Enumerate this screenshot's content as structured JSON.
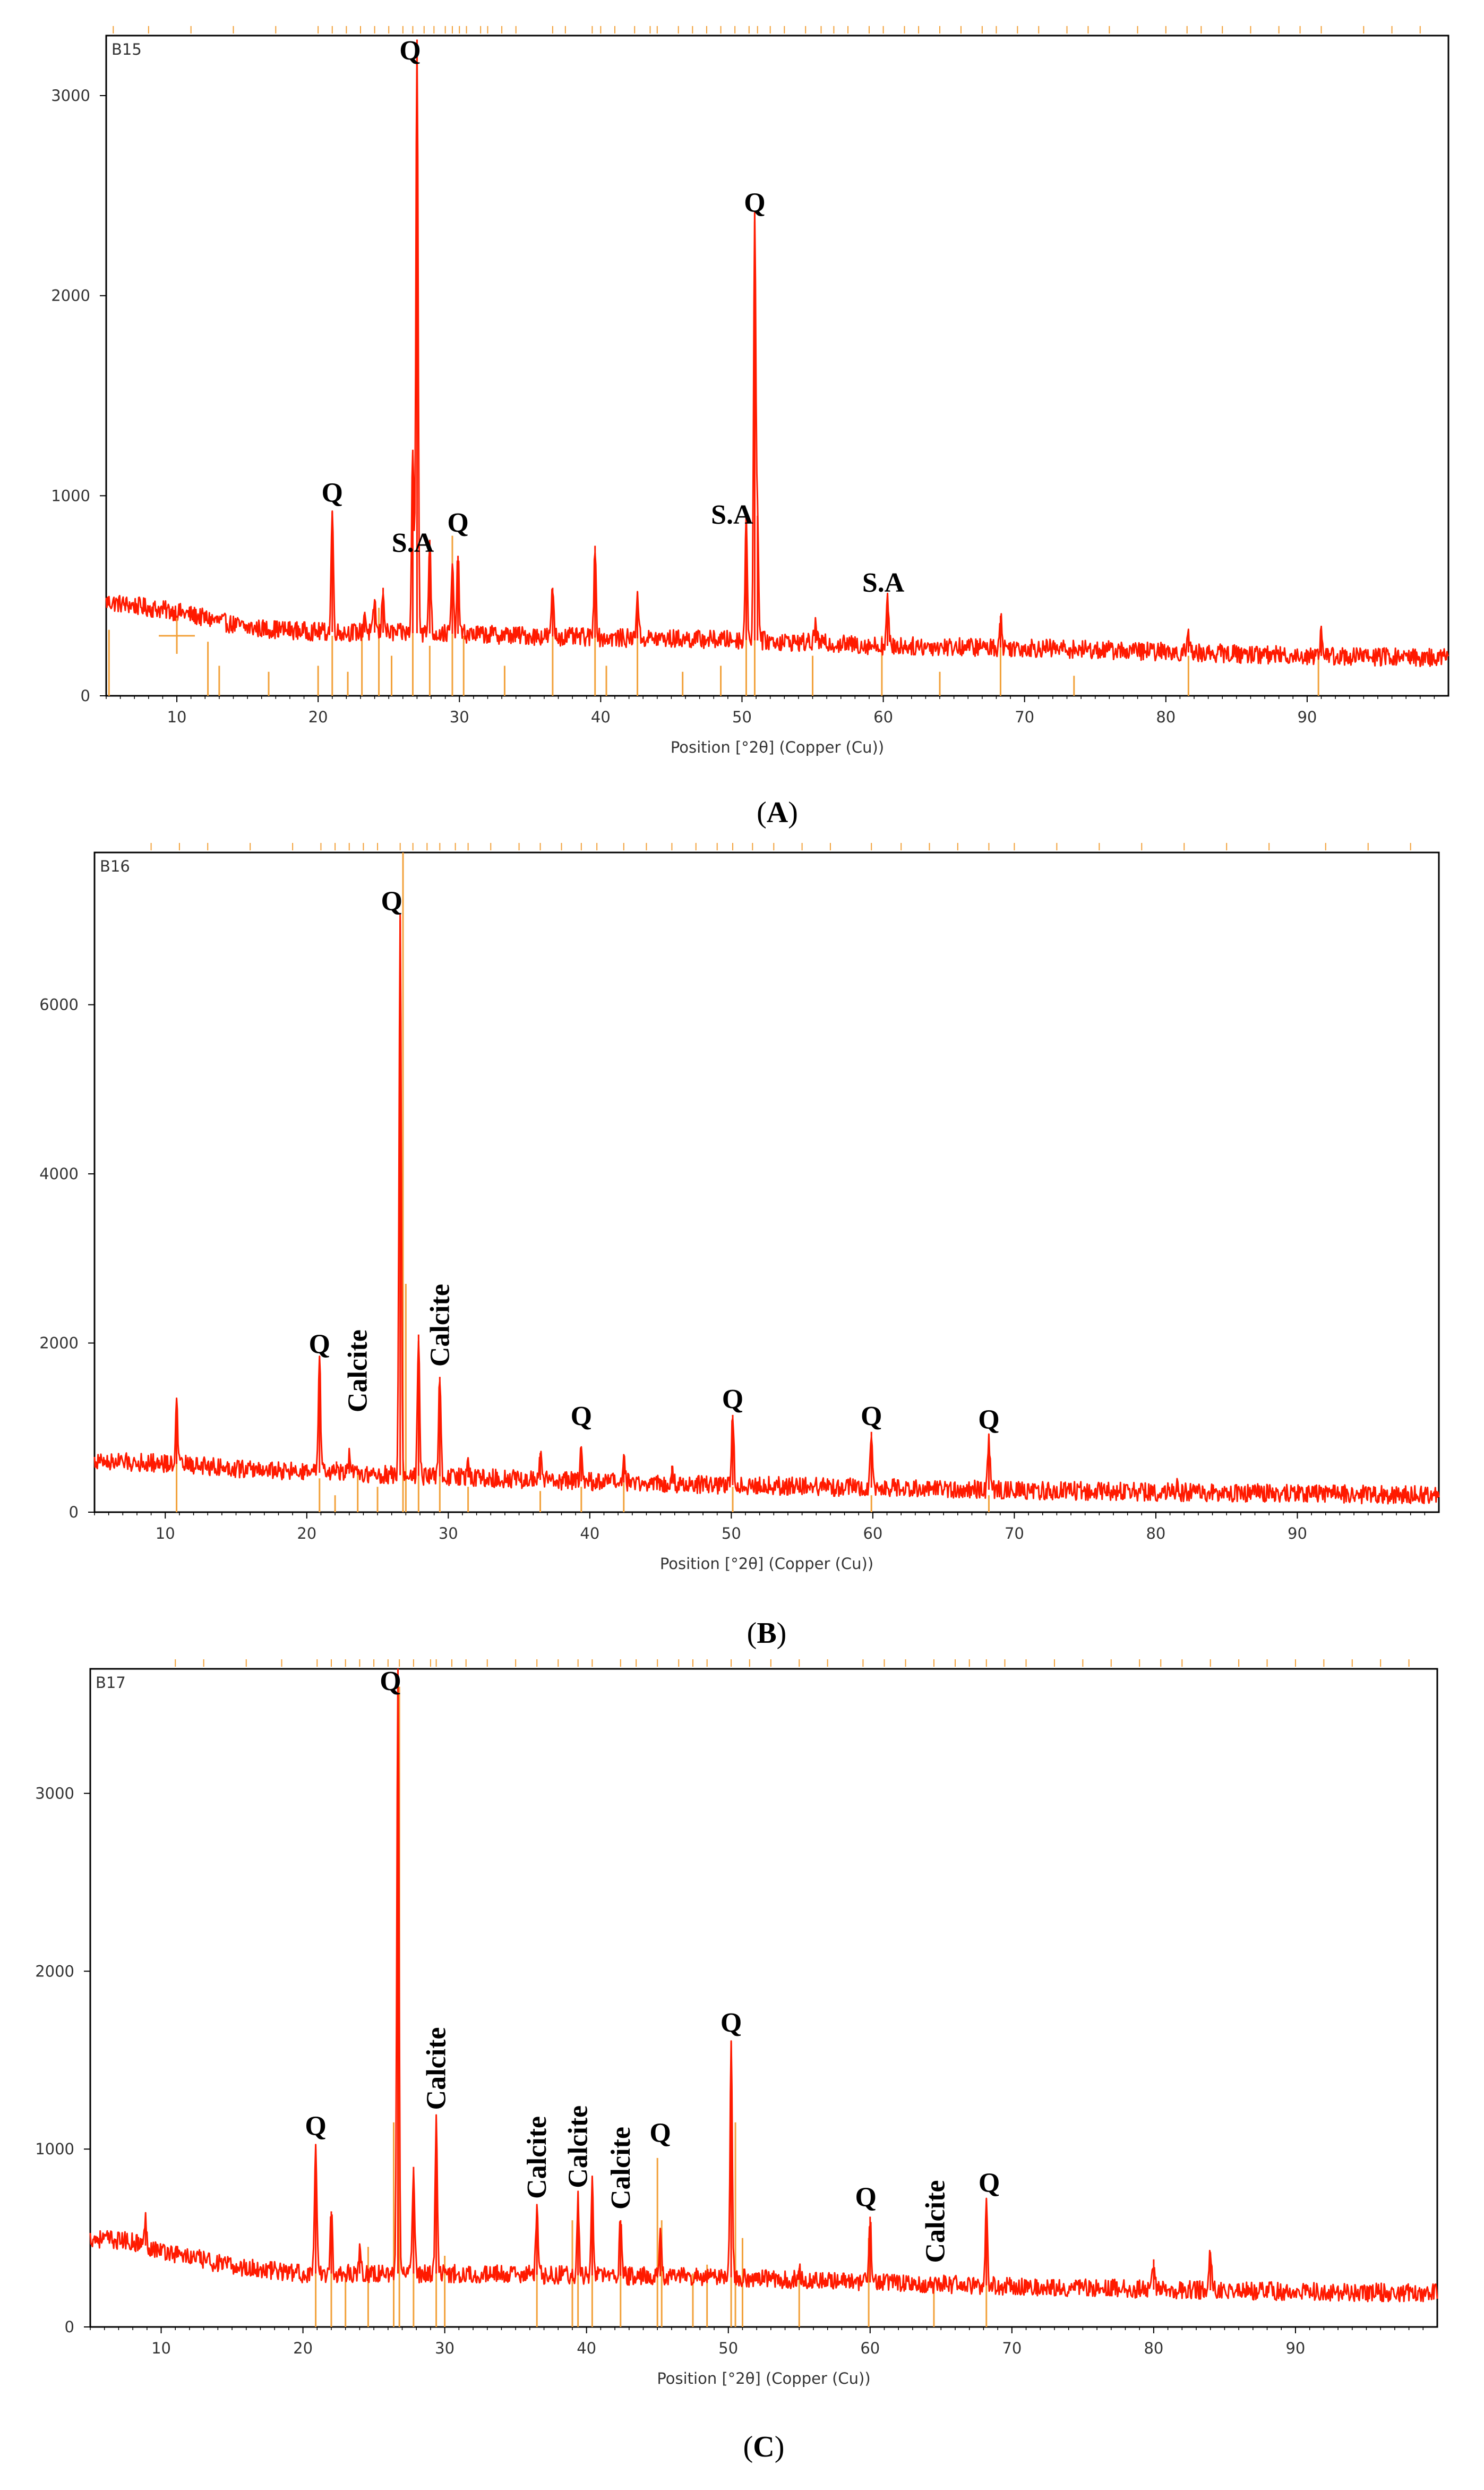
{
  "colors": {
    "pattern": "#ff1a00",
    "reference": "#f2a13a",
    "frame": "#000000",
    "axis_text": "#333333"
  },
  "chart_data": [
    {
      "type": "line",
      "panel": "A",
      "caption_letter": "A",
      "sample": "B15",
      "xlabel": "Position [°2θ] (Copper (Cu))",
      "xlim": [
        5,
        100
      ],
      "xticks": [
        "10",
        "20",
        "30",
        "40",
        "50",
        "60",
        "70",
        "80",
        "90"
      ],
      "ylim": [
        0,
        3300
      ],
      "yticks": [
        "0",
        "1000",
        "2000",
        "3000"
      ],
      "baseline": [
        [
          5,
          470
        ],
        [
          10,
          420
        ],
        [
          15,
          340
        ],
        [
          20,
          320
        ],
        [
          30,
          310
        ],
        [
          40,
          290
        ],
        [
          50,
          280
        ],
        [
          60,
          250
        ],
        [
          70,
          240
        ],
        [
          80,
          220
        ],
        [
          90,
          200
        ],
        [
          100,
          190
        ]
      ],
      "peaks": [
        {
          "x": 21.0,
          "y": 920
        },
        {
          "x": 23.3,
          "y": 420
        },
        {
          "x": 24.0,
          "y": 480
        },
        {
          "x": 24.6,
          "y": 540
        },
        {
          "x": 26.7,
          "y": 1230
        },
        {
          "x": 27.0,
          "y": 3280
        },
        {
          "x": 27.9,
          "y": 780
        },
        {
          "x": 29.5,
          "y": 640
        },
        {
          "x": 29.9,
          "y": 700
        },
        {
          "x": 36.6,
          "y": 540
        },
        {
          "x": 39.6,
          "y": 750
        },
        {
          "x": 42.6,
          "y": 520
        },
        {
          "x": 50.3,
          "y": 870
        },
        {
          "x": 50.9,
          "y": 2370
        },
        {
          "x": 51.1,
          "y": 900
        },
        {
          "x": 55.2,
          "y": 370
        },
        {
          "x": 60.3,
          "y": 480
        },
        {
          "x": 68.3,
          "y": 400
        },
        {
          "x": 81.6,
          "y": 310
        },
        {
          "x": 91.0,
          "y": 350
        }
      ],
      "reference_sticks": [
        {
          "x": 5.2,
          "y": 330
        },
        {
          "x": 12.2,
          "y": 270
        },
        {
          "x": 13.0,
          "y": 150
        },
        {
          "x": 16.5,
          "y": 120
        },
        {
          "x": 20.0,
          "y": 150
        },
        {
          "x": 21.0,
          "y": 300
        },
        {
          "x": 22.1,
          "y": 120
        },
        {
          "x": 23.1,
          "y": 340
        },
        {
          "x": 24.3,
          "y": 440
        },
        {
          "x": 25.2,
          "y": 200
        },
        {
          "x": 26.7,
          "y": 1200
        },
        {
          "x": 27.9,
          "y": 250
        },
        {
          "x": 29.5,
          "y": 800
        },
        {
          "x": 30.3,
          "y": 300
        },
        {
          "x": 33.2,
          "y": 150
        },
        {
          "x": 36.6,
          "y": 300
        },
        {
          "x": 39.6,
          "y": 700
        },
        {
          "x": 40.4,
          "y": 150
        },
        {
          "x": 42.6,
          "y": 400
        },
        {
          "x": 45.8,
          "y": 120
        },
        {
          "x": 48.5,
          "y": 150
        },
        {
          "x": 50.3,
          "y": 860
        },
        {
          "x": 50.9,
          "y": 2370
        },
        {
          "x": 55.0,
          "y": 200
        },
        {
          "x": 59.9,
          "y": 300
        },
        {
          "x": 64.0,
          "y": 120
        },
        {
          "x": 68.3,
          "y": 350
        },
        {
          "x": 73.5,
          "y": 100
        },
        {
          "x": 81.6,
          "y": 200
        },
        {
          "x": 90.8,
          "y": 200
        }
      ],
      "top_markers": [
        5.5,
        8,
        11,
        14,
        17,
        20,
        21,
        22,
        23,
        24,
        25,
        26,
        26.7,
        27.5,
        28.2,
        29,
        29.5,
        30,
        30.5,
        31.5,
        32,
        33,
        34,
        36.6,
        37.5,
        39.4,
        40,
        41,
        42.4,
        43.5,
        44,
        45.5,
        46.5,
        47.5,
        48.5,
        49.5,
        50.5,
        51.1,
        52,
        53,
        54.5,
        55.6,
        56.5,
        57.5,
        59,
        60,
        61.5,
        62.5,
        64,
        65.5,
        67,
        68,
        69.5,
        71,
        73,
        74.5,
        76,
        78,
        80,
        81.5,
        82.5,
        84,
        86,
        88,
        89.5,
        91,
        94,
        96,
        98
      ],
      "cursor": [
        10,
        300
      ],
      "labels": [
        {
          "text": "Q",
          "x": 21.0,
          "y": 970
        },
        {
          "text": "Q",
          "x": 27.0,
          "y": 3180,
          "x_offset": -13
        },
        {
          "text": "S.A",
          "x": 26.7,
          "y": 720
        },
        {
          "text": "Q",
          "x": 29.9,
          "y": 820
        },
        {
          "text": "Q",
          "x": 50.9,
          "y": 2420
        },
        {
          "text": "S.A",
          "x": 49.3,
          "y": 860
        },
        {
          "text": "S.A",
          "x": 60.0,
          "y": 520
        }
      ]
    },
    {
      "type": "line",
      "panel": "B",
      "caption_letter": "B",
      "sample": "B16",
      "xlabel": "Position [°2θ] (Copper (Cu))",
      "xlim": [
        5,
        100
      ],
      "xticks": [
        "10",
        "20",
        "30",
        "40",
        "50",
        "60",
        "70",
        "80",
        "90"
      ],
      "ylim": [
        0,
        7800
      ],
      "yticks": [
        "0",
        "2000",
        "4000",
        "6000"
      ],
      "baseline": [
        [
          5,
          600
        ],
        [
          10,
          580
        ],
        [
          15,
          520
        ],
        [
          20,
          470
        ],
        [
          30,
          420
        ],
        [
          40,
          360
        ],
        [
          50,
          320
        ],
        [
          60,
          290
        ],
        [
          70,
          260
        ],
        [
          80,
          240
        ],
        [
          90,
          220
        ],
        [
          100,
          200
        ]
      ],
      "peaks": [
        {
          "x": 10.8,
          "y": 1250
        },
        {
          "x": 20.9,
          "y": 1800
        },
        {
          "x": 22.1,
          "y": 600
        },
        {
          "x": 23.0,
          "y": 650
        },
        {
          "x": 26.6,
          "y": 7000
        },
        {
          "x": 27.9,
          "y": 2100
        },
        {
          "x": 29.4,
          "y": 1600
        },
        {
          "x": 31.4,
          "y": 650
        },
        {
          "x": 36.5,
          "y": 700
        },
        {
          "x": 39.4,
          "y": 750
        },
        {
          "x": 42.4,
          "y": 600
        },
        {
          "x": 45.8,
          "y": 550
        },
        {
          "x": 50.1,
          "y": 1150
        },
        {
          "x": 59.9,
          "y": 950
        },
        {
          "x": 68.2,
          "y": 900
        },
        {
          "x": 81.5,
          "y": 360
        }
      ],
      "reference_sticks": [
        {
          "x": 10.8,
          "y": 1200
        },
        {
          "x": 20.9,
          "y": 400
        },
        {
          "x": 22.0,
          "y": 200
        },
        {
          "x": 23.6,
          "y": 500
        },
        {
          "x": 25.0,
          "y": 300
        },
        {
          "x": 26.8,
          "y": 7800
        },
        {
          "x": 27.0,
          "y": 2700
        },
        {
          "x": 27.9,
          "y": 1000
        },
        {
          "x": 29.4,
          "y": 900
        },
        {
          "x": 31.4,
          "y": 300
        },
        {
          "x": 36.5,
          "y": 250
        },
        {
          "x": 39.4,
          "y": 300
        },
        {
          "x": 42.4,
          "y": 350
        },
        {
          "x": 50.1,
          "y": 300
        },
        {
          "x": 59.9,
          "y": 200
        },
        {
          "x": 68.2,
          "y": 200
        }
      ],
      "top_markers": [
        9,
        11,
        13,
        16,
        19,
        21,
        22,
        23,
        24,
        25,
        26.6,
        27.5,
        28.5,
        29.4,
        30.5,
        31.4,
        33,
        35,
        36.5,
        38,
        39.4,
        40.5,
        42.4,
        44,
        45.8,
        47.5,
        49,
        50.1,
        51.5,
        53,
        55,
        57,
        59.9,
        62,
        64,
        66,
        68.2,
        70,
        73,
        76,
        79,
        82,
        85,
        88,
        92,
        95,
        98
      ],
      "labels": [
        {
          "text": "Q",
          "x": 20.9,
          "y": 1880
        },
        {
          "text": "Q",
          "x": 26.6,
          "y": 7120,
          "x_offset": -16
        },
        {
          "text": "Calcite",
          "x": 23.6,
          "y": 1180,
          "rotate": true
        },
        {
          "text": "Calcite",
          "x": 29.4,
          "y": 1720,
          "rotate": true
        },
        {
          "text": "Q",
          "x": 39.4,
          "y": 1030
        },
        {
          "text": "Q",
          "x": 50.1,
          "y": 1230
        },
        {
          "text": "Q",
          "x": 59.9,
          "y": 1030
        },
        {
          "text": "Q",
          "x": 68.2,
          "y": 990
        }
      ]
    },
    {
      "type": "line",
      "panel": "C",
      "caption_letter": "C",
      "sample": "B17",
      "xlabel": "Position [°2θ] (Copper (Cu))",
      "xlim": [
        5,
        100
      ],
      "xticks": [
        "10",
        "20",
        "30",
        "40",
        "50",
        "60",
        "70",
        "80",
        "90"
      ],
      "ylim": [
        0,
        3700
      ],
      "yticks": [
        "0",
        "1000",
        "2000",
        "3000"
      ],
      "baseline": [
        [
          5,
          500
        ],
        [
          8,
          480
        ],
        [
          10,
          430
        ],
        [
          15,
          340
        ],
        [
          20,
          300
        ],
        [
          30,
          300
        ],
        [
          40,
          290
        ],
        [
          50,
          280
        ],
        [
          60,
          250
        ],
        [
          70,
          230
        ],
        [
          80,
          210
        ],
        [
          90,
          200
        ],
        [
          100,
          190
        ]
      ],
      "peaks": [
        {
          "x": 8.9,
          "y": 600
        },
        {
          "x": 20.9,
          "y": 1000
        },
        {
          "x": 22.0,
          "y": 650
        },
        {
          "x": 24.0,
          "y": 450
        },
        {
          "x": 26.7,
          "y": 3650
        },
        {
          "x": 27.8,
          "y": 900
        },
        {
          "x": 29.4,
          "y": 1150
        },
        {
          "x": 36.5,
          "y": 650
        },
        {
          "x": 39.4,
          "y": 720
        },
        {
          "x": 40.4,
          "y": 800
        },
        {
          "x": 42.4,
          "y": 600
        },
        {
          "x": 45.2,
          "y": 550
        },
        {
          "x": 50.2,
          "y": 1600
        },
        {
          "x": 55.0,
          "y": 330
        },
        {
          "x": 60.0,
          "y": 620
        },
        {
          "x": 68.2,
          "y": 680
        },
        {
          "x": 80.0,
          "y": 380
        },
        {
          "x": 84.0,
          "y": 420
        }
      ],
      "reference_sticks": [
        {
          "x": 20.9,
          "y": 300
        },
        {
          "x": 22.0,
          "y": 400
        },
        {
          "x": 23.0,
          "y": 300
        },
        {
          "x": 24.6,
          "y": 450
        },
        {
          "x": 26.4,
          "y": 1150
        },
        {
          "x": 26.8,
          "y": 3600
        },
        {
          "x": 27.8,
          "y": 850
        },
        {
          "x": 29.4,
          "y": 1150
        },
        {
          "x": 30.0,
          "y": 400
        },
        {
          "x": 36.5,
          "y": 500
        },
        {
          "x": 39.0,
          "y": 600
        },
        {
          "x": 39.4,
          "y": 700
        },
        {
          "x": 40.4,
          "y": 750
        },
        {
          "x": 42.4,
          "y": 600
        },
        {
          "x": 45.0,
          "y": 950
        },
        {
          "x": 45.3,
          "y": 600
        },
        {
          "x": 47.5,
          "y": 300
        },
        {
          "x": 48.5,
          "y": 350
        },
        {
          "x": 50.2,
          "y": 1600
        },
        {
          "x": 50.5,
          "y": 1150
        },
        {
          "x": 51.0,
          "y": 500
        },
        {
          "x": 55.0,
          "y": 300
        },
        {
          "x": 59.9,
          "y": 500
        },
        {
          "x": 64.5,
          "y": 250
        },
        {
          "x": 68.2,
          "y": 600
        }
      ],
      "top_markers": [
        11,
        13,
        16,
        18.5,
        21,
        22,
        23,
        24,
        25,
        26,
        26.8,
        27.8,
        29,
        29.4,
        30.5,
        31.5,
        33,
        35,
        36.5,
        38,
        39.4,
        40.4,
        42.4,
        43.5,
        45,
        46.5,
        47.5,
        48.5,
        50.2,
        51.5,
        53,
        55,
        57,
        59.5,
        61,
        62.5,
        64.5,
        66,
        67,
        68.2,
        69.5,
        71,
        73,
        75,
        77,
        79,
        80.5,
        82,
        84,
        86,
        88,
        90,
        92,
        94,
        96,
        98
      ],
      "labels": [
        {
          "text": "Q",
          "x": 20.9,
          "y": 1080
        },
        {
          "text": "Q",
          "x": 26.7,
          "y": 3580,
          "x_offset": -14
        },
        {
          "text": "Calcite",
          "x": 29.4,
          "y": 1220,
          "rotate": true
        },
        {
          "text": "Calcite",
          "x": 36.5,
          "y": 720,
          "rotate": true
        },
        {
          "text": "Calcite",
          "x": 39.4,
          "y": 780,
          "rotate": true
        },
        {
          "text": "Calcite",
          "x": 42.4,
          "y": 660,
          "rotate": true
        },
        {
          "text": "Q",
          "x": 45.2,
          "y": 1040
        },
        {
          "text": "Q",
          "x": 50.2,
          "y": 1660
        },
        {
          "text": "Q",
          "x": 59.7,
          "y": 680
        },
        {
          "text": "Calcite",
          "x": 64.6,
          "y": 360,
          "rotate": true
        },
        {
          "text": "Q",
          "x": 68.4,
          "y": 760
        }
      ]
    }
  ]
}
